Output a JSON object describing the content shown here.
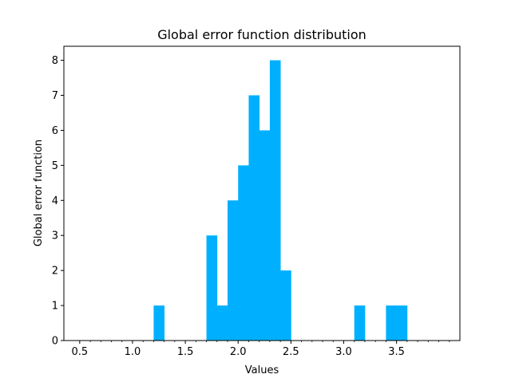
{
  "chart_data": {
    "type": "bar",
    "title": "Global error function distribution",
    "xlabel": "Values",
    "ylabel": "Global error function",
    "xlim": [
      0.35,
      4.1
    ],
    "ylim": [
      0,
      8.4
    ],
    "x_ticks": [
      0.5,
      1.0,
      1.5,
      2.0,
      2.5,
      3.0,
      3.5
    ],
    "x_tick_labels": [
      "0.5",
      "1.0",
      "1.5",
      "2.0",
      "2.5",
      "3.0",
      "3.5"
    ],
    "x_minor_ticks": [
      0.6,
      0.7,
      0.8,
      0.9,
      1.1,
      1.2,
      1.3,
      1.4,
      1.6,
      1.7,
      1.8,
      1.9,
      2.1,
      2.2,
      2.3,
      2.4,
      2.6,
      2.7,
      2.8,
      2.9,
      3.1,
      3.2,
      3.3,
      3.4,
      3.6,
      3.7,
      3.8,
      3.9,
      4.0
    ],
    "y_ticks": [
      0,
      1,
      2,
      3,
      4,
      5,
      6,
      7,
      8
    ],
    "y_tick_labels": [
      "0",
      "1",
      "2",
      "3",
      "4",
      "5",
      "6",
      "7",
      "8"
    ],
    "bin_width": 0.1,
    "bins": [
      {
        "x": 1.2,
        "value": 1
      },
      {
        "x": 1.7,
        "value": 3
      },
      {
        "x": 1.8,
        "value": 1
      },
      {
        "x": 1.9,
        "value": 4
      },
      {
        "x": 2.0,
        "value": 5
      },
      {
        "x": 2.1,
        "value": 7
      },
      {
        "x": 2.2,
        "value": 6
      },
      {
        "x": 2.3,
        "value": 8
      },
      {
        "x": 2.4,
        "value": 2
      },
      {
        "x": 3.1,
        "value": 1
      },
      {
        "x": 3.4,
        "value": 1
      },
      {
        "x": 3.5,
        "value": 1
      }
    ],
    "bar_color": "#00b0ff",
    "grid": false,
    "legend": "none"
  }
}
